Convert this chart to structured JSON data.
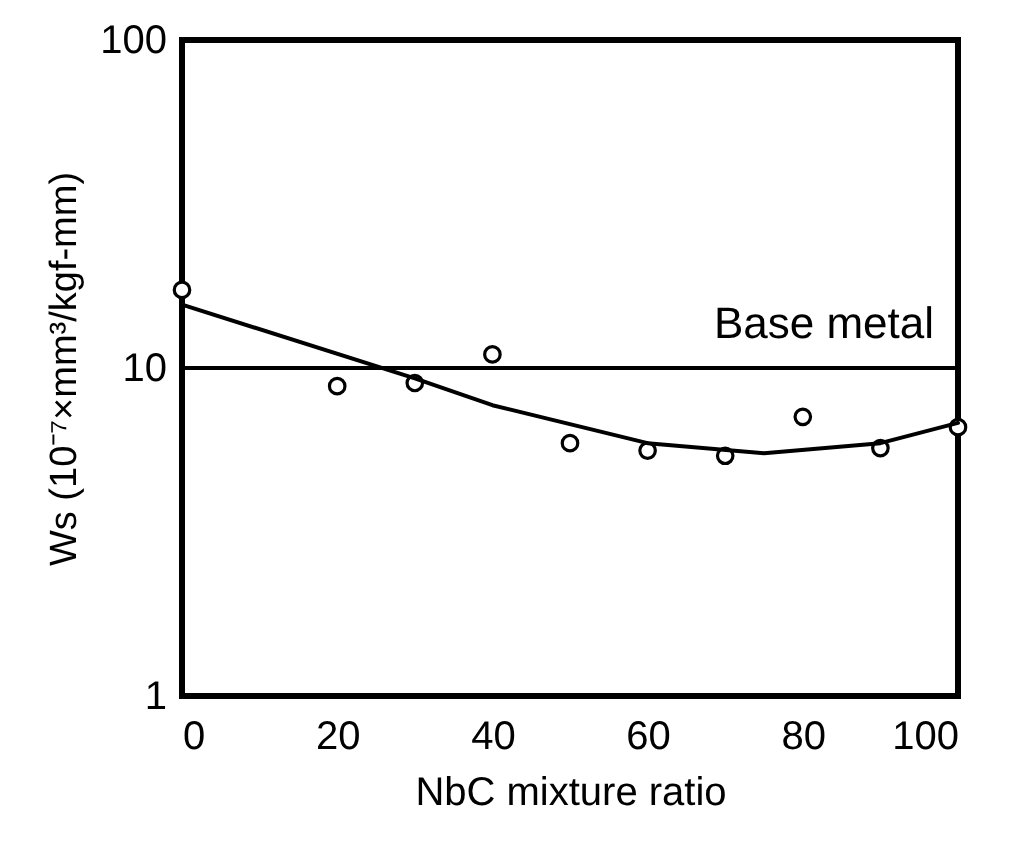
{
  "chart_data": {
    "type": "scatter",
    "xlabel": "NbC mixture ratio",
    "ylabel": "Ws (10⁻⁷×mm³/kgf-mm)",
    "x": [
      0,
      20,
      30,
      40,
      50,
      60,
      70,
      80,
      90,
      100
    ],
    "series": [
      {
        "color": "#000000",
        "marker": "circle",
        "values": [
          17.3,
          8.8,
          9.0,
          11.0,
          5.9,
          5.6,
          5.4,
          7.1,
          5.7,
          6.6
        ]
      },
      {
        "type": "line",
        "color": "#000000",
        "marker": "none",
        "line_style": "solid",
        "x": [
          0,
          30,
          40,
          60,
          75,
          90,
          100
        ],
        "values": [
          15.6,
          9.3,
          7.7,
          5.9,
          5.5,
          5.9,
          6.8
        ]
      }
    ],
    "log": "y",
    "xlim": [
      0,
      100
    ],
    "ylim": [
      1,
      100
    ],
    "xticks": [
      0,
      20,
      40,
      60,
      80,
      100
    ],
    "yticks": [
      1,
      10,
      100
    ],
    "ref_lines": [
      {
        "axis": "y",
        "value": 10,
        "label": "Base metal",
        "color": "#000000",
        "line_style": "solid"
      }
    ],
    "grid": false
  }
}
